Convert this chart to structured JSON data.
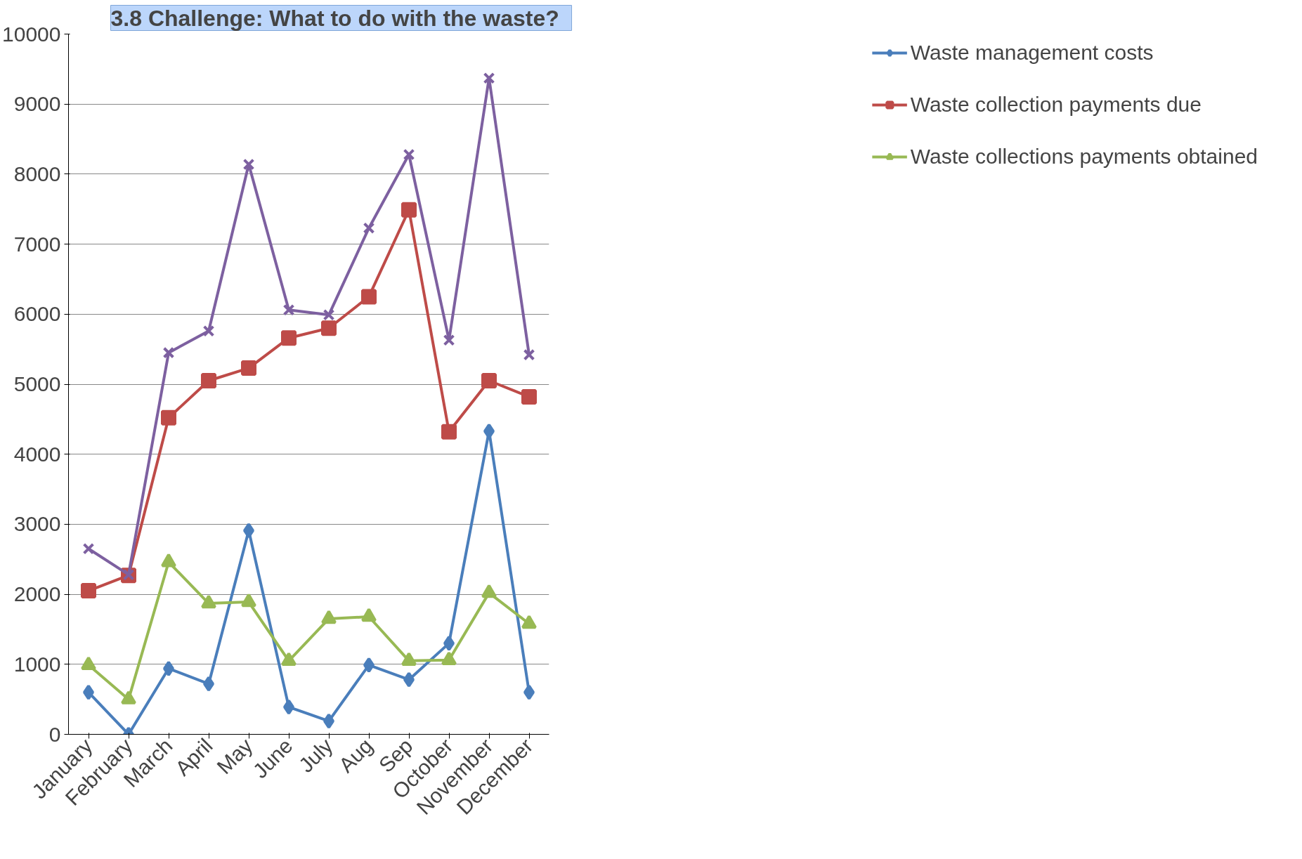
{
  "chart_data": {
    "type": "line",
    "title": "3.8 Challenge:  What  to do with the waste?",
    "categories": [
      "January",
      "February",
      "March",
      "April",
      "May",
      "June",
      "July",
      "Aug",
      "Sep",
      "October",
      "November",
      "December"
    ],
    "ylim": [
      0,
      10000
    ],
    "yticks": [
      0,
      1000,
      2000,
      3000,
      4000,
      5000,
      6000,
      7000,
      8000,
      9000,
      10000
    ],
    "grid": "y",
    "legend": "right",
    "series": [
      {
        "name": "Waste management costs",
        "color": "#4a7ebb",
        "marker": "diamond",
        "values": [
          600,
          0,
          940,
          720,
          2910,
          390,
          190,
          990,
          780,
          1300,
          4330,
          600
        ]
      },
      {
        "name": "Waste collection payments due",
        "color": "#be4b48",
        "marker": "square",
        "values": [
          2050,
          2270,
          4520,
          5050,
          5230,
          5660,
          5800,
          6250,
          7490,
          4320,
          5050,
          4820
        ]
      },
      {
        "name": "Waste collections payments obtained",
        "color": "#98b954",
        "marker": "triangle",
        "values": [
          990,
          500,
          2460,
          1870,
          1890,
          1050,
          1650,
          1680,
          1050,
          1060,
          2020,
          1580
        ]
      },
      {
        "color": "#7d60a0",
        "marker": "cross",
        "values": [
          2650,
          2280,
          5450,
          5760,
          8140,
          6060,
          5990,
          7230,
          8280,
          5630,
          9370,
          5420
        ]
      }
    ]
  }
}
